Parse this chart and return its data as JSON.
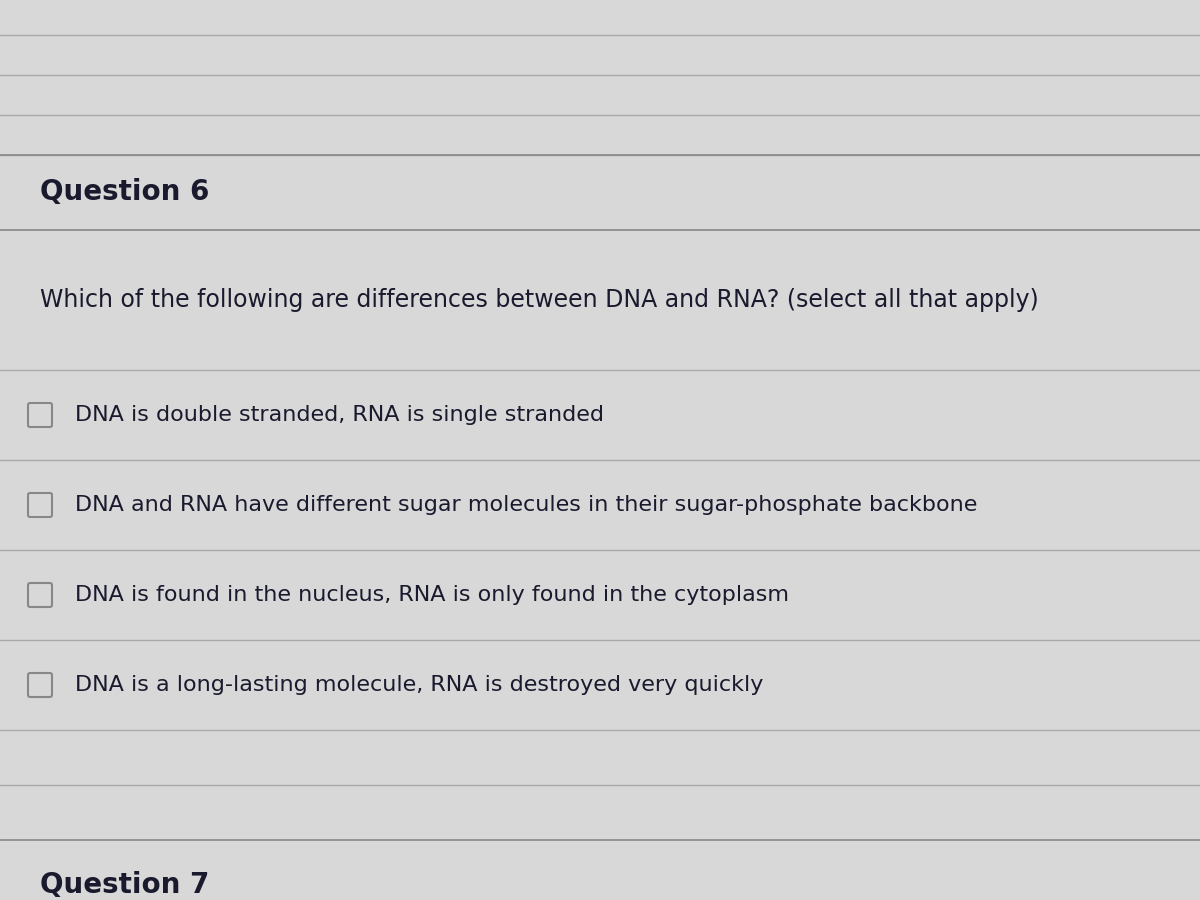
{
  "title": "Question 6",
  "question": "Which of the following are differences between DNA and RNA? (select all that apply)",
  "options": [
    "DNA is double stranded, RNA is single stranded",
    "DNA and RNA have different sugar molecules in their sugar-phosphate backbone",
    "DNA is found in the nucleus, RNA is only found in the cytoplasm",
    "DNA is a long-lasting molecule, RNA is destroyed very quickly"
  ],
  "footer": "Question 7",
  "bg_color": "#d4d4d4",
  "main_bg": "#d8d8d8",
  "section_bg": "#d0d0d0",
  "line_color": "#888888",
  "light_line_color": "#aaaaaa",
  "title_fontsize": 20,
  "question_fontsize": 17,
  "option_fontsize": 16,
  "footer_fontsize": 20,
  "text_color": "#1a1a2e",
  "checkbox_color": "#888888",
  "checkbox_bg": "#d8d8d8"
}
